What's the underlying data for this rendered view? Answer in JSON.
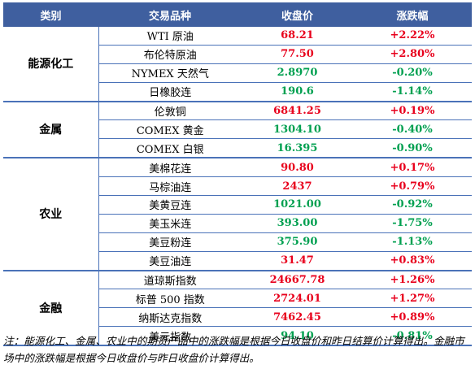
{
  "header": {
    "category": "类别",
    "product": "交易品种",
    "close": "收盘价",
    "change": "涨跌幅"
  },
  "groups": [
    {
      "category": "能源化工",
      "rows": [
        {
          "name": "WTI 原油",
          "close": "68.21",
          "change": "+2.22%",
          "dir": "up"
        },
        {
          "name": "布伦特原油",
          "close": "77.50",
          "change": "+2.80%",
          "dir": "up"
        },
        {
          "name": "NYMEX 天然气",
          "close": "2.8970",
          "change": "-0.20%",
          "dir": "down"
        },
        {
          "name": "日橡胶连",
          "close": "190.6",
          "change": "-1.14%",
          "dir": "down"
        }
      ]
    },
    {
      "category": "金属",
      "rows": [
        {
          "name": "伦敦铜",
          "close": "6841.25",
          "change": "+0.19%",
          "dir": "up"
        },
        {
          "name": "COMEX 黄金",
          "close": "1304.10",
          "change": "-0.40%",
          "dir": "down"
        },
        {
          "name": "COMEX 白银",
          "close": "16.395",
          "change": "-0.90%",
          "dir": "down"
        }
      ]
    },
    {
      "category": "农业",
      "rows": [
        {
          "name": "美棉花连",
          "close": "90.80",
          "change": "+0.17%",
          "dir": "up"
        },
        {
          "name": "马棕油连",
          "close": "2437",
          "change": "+0.79%",
          "dir": "up"
        },
        {
          "name": "美黄豆连",
          "close": "1021.00",
          "change": "-0.92%",
          "dir": "down"
        },
        {
          "name": "美玉米连",
          "close": "393.00",
          "change": "-1.75%",
          "dir": "down"
        },
        {
          "name": "美豆粉连",
          "close": "375.90",
          "change": "-1.13%",
          "dir": "down"
        },
        {
          "name": "美豆油连",
          "close": "31.47",
          "change": "+0.83%",
          "dir": "up"
        }
      ]
    },
    {
      "category": "金融",
      "rows": [
        {
          "name": "道琼斯指数",
          "close": "24667.78",
          "change": "+1.26%",
          "dir": "up"
        },
        {
          "name": "标普 500 指数",
          "close": "2724.01",
          "change": "+1.27%",
          "dir": "up"
        },
        {
          "name": "纳斯达克指数",
          "close": "7462.45",
          "change": "+0.89%",
          "dir": "up"
        },
        {
          "name": "美元指数",
          "close": "94.10",
          "change": "-0.81%",
          "dir": "down"
        }
      ]
    }
  ],
  "colors": {
    "header_bg": "#3f5f9f",
    "up": "#e8001c",
    "down": "#00a050",
    "border": "#4a72b8"
  },
  "note": "注：能源化工、金属、农业中的期货产品中的涨跌幅是根据今日收盘价和昨日结算价计算得出。金融市场中的涨跌幅是根据今日收盘价与昨日收盘价计算得出。"
}
